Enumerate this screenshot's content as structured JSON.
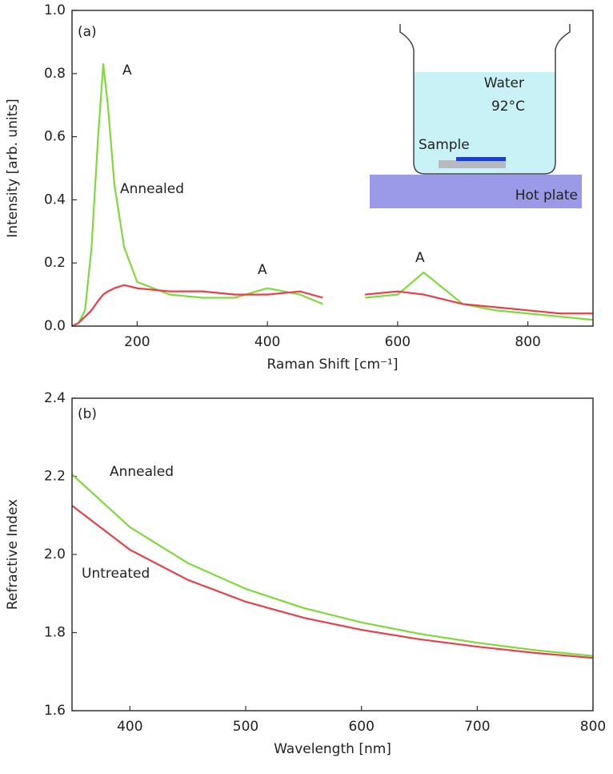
{
  "chart_data": [
    {
      "type": "line",
      "panel_label": "(a)",
      "xlabel": "Raman Shift [cm⁻¹]",
      "ylabel": "Intensity [arb. units]",
      "x": [
        100,
        110,
        120,
        130,
        140,
        148,
        155,
        165,
        180,
        200,
        250,
        300,
        350,
        400,
        450,
        485,
        515,
        550,
        600,
        640,
        700,
        750,
        800,
        850,
        900
      ],
      "xlim": [
        100,
        900
      ],
      "xticks": [
        200,
        400,
        600,
        800
      ],
      "ylim": [
        0,
        1
      ],
      "yticks": [
        {
          "value": 0,
          "label": "0.0"
        },
        0.2,
        0.4,
        0.6,
        0.8,
        {
          "value": 1,
          "label": "1.0"
        }
      ],
      "series": [
        {
          "name": "Annealed",
          "color": "#7ed93a",
          "values": [
            0.0,
            0.01,
            0.05,
            0.25,
            0.6,
            0.83,
            0.7,
            0.45,
            0.25,
            0.14,
            0.1,
            0.09,
            0.09,
            0.12,
            0.1,
            0.07,
            null,
            0.09,
            0.1,
            0.17,
            0.07,
            0.05,
            0.04,
            0.03,
            0.02
          ]
        },
        {
          "color": "#e8404a",
          "values": [
            0.0,
            0.01,
            0.03,
            0.05,
            0.08,
            0.1,
            0.11,
            0.12,
            0.13,
            0.12,
            0.11,
            0.11,
            0.1,
            0.1,
            0.11,
            0.09,
            null,
            0.1,
            0.11,
            0.1,
            0.07,
            0.06,
            0.05,
            0.04,
            0.04
          ]
        }
      ],
      "annotations": [
        "A",
        "A",
        "A",
        "Water",
        "92°C",
        "Sample",
        "Hot plate"
      ]
    },
    {
      "type": "line",
      "panel_label": "(b)",
      "xlabel": "Wavelength [nm]",
      "ylabel": "Refractive Index",
      "x": [
        350,
        400,
        450,
        500,
        550,
        600,
        650,
        700,
        750,
        800
      ],
      "xlim": [
        350,
        800
      ],
      "xticks": [
        400,
        500,
        600,
        700,
        800
      ],
      "ylim": [
        1.6,
        2.4
      ],
      "yticks": [
        1.6,
        1.8,
        {
          "value": 2.0,
          "label": "2.0"
        },
        2.2,
        2.4
      ],
      "series": [
        {
          "name": "Annealed",
          "color": "#7ed93a",
          "values": [
            2.205,
            2.07,
            1.978,
            1.912,
            1.863,
            1.826,
            1.797,
            1.774,
            1.755,
            1.74
          ]
        },
        {
          "name": "Untreated",
          "color": "#e8404a",
          "values": [
            2.125,
            2.012,
            1.935,
            1.879,
            1.838,
            1.807,
            1.783,
            1.764,
            1.748,
            1.735
          ]
        }
      ]
    }
  ]
}
